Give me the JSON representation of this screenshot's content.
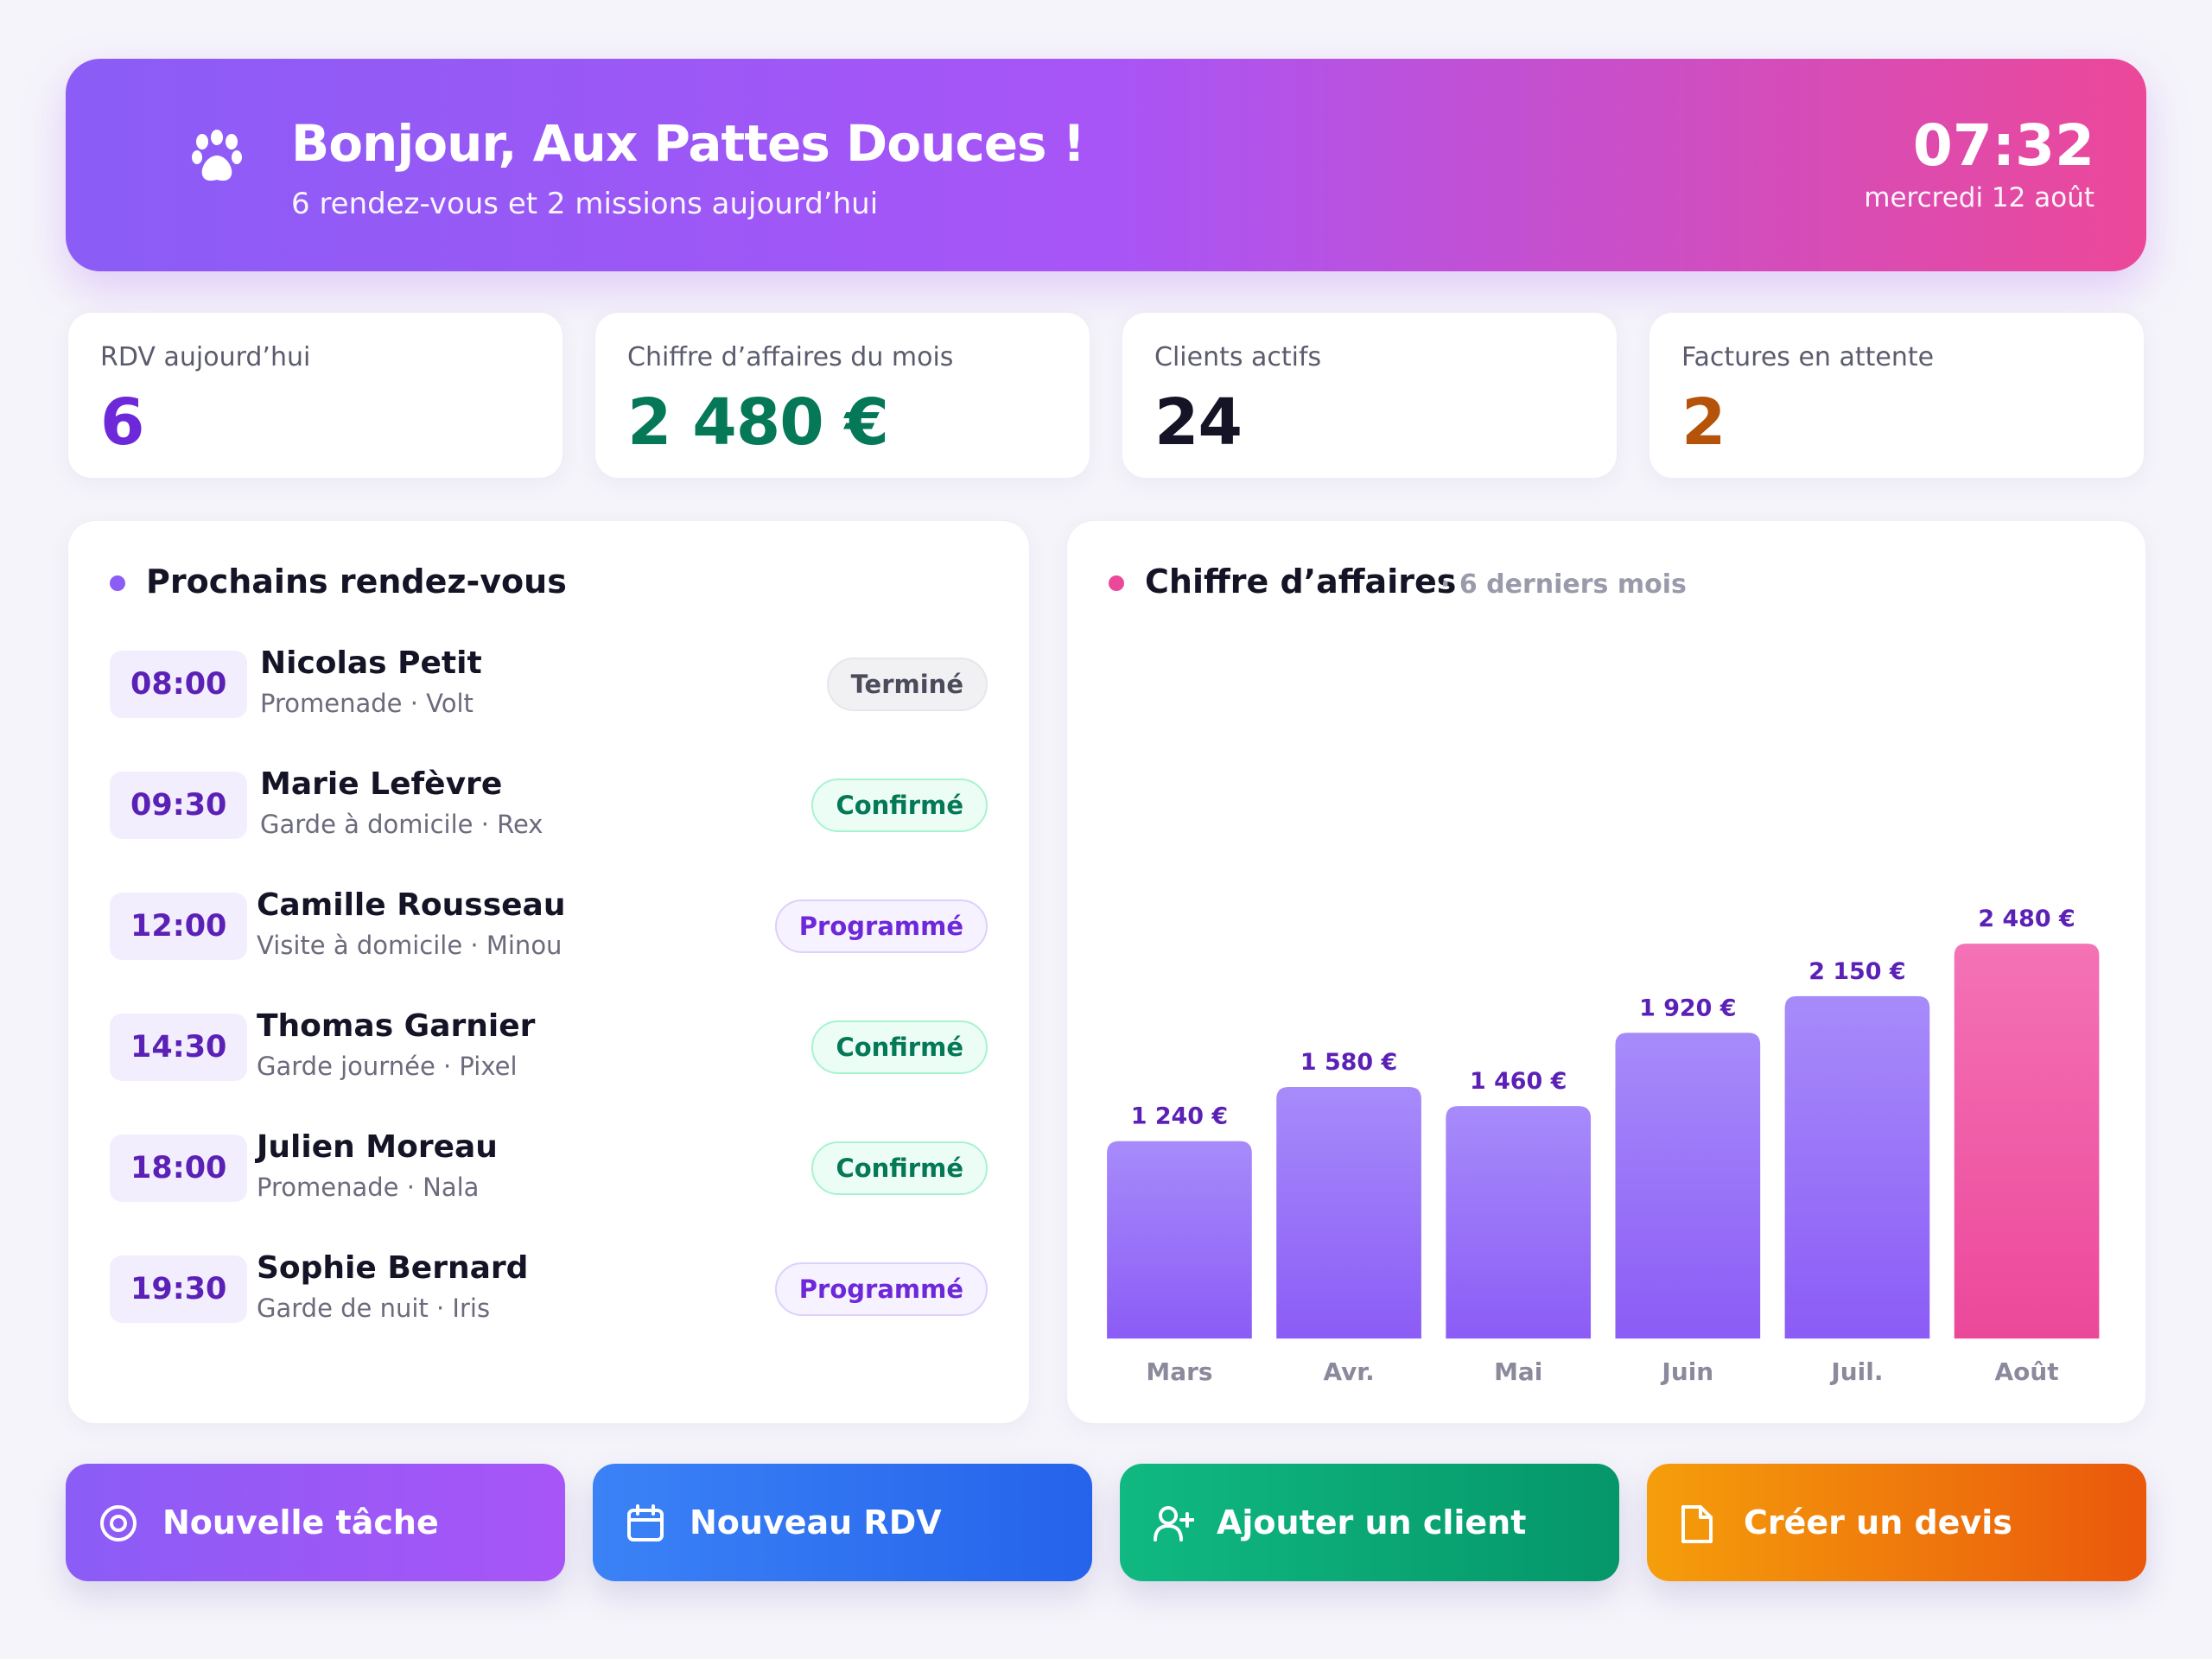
{
  "header": {
    "title": "Bonjour, Aux Pattes Douces !",
    "subtitle": "6 rendez-vous et 2 missions aujourd’hui",
    "time": "07:32",
    "date": "mercredi 12 août",
    "icon": "paw-icon"
  },
  "kpis": [
    {
      "label": "RDV aujourd’hui",
      "value": "6",
      "color": "#6d28d9"
    },
    {
      "label": "Chiffre d’affaires du mois",
      "value": "2 480 €",
      "color": "#047857"
    },
    {
      "label": "Clients actifs",
      "value": "24",
      "color": "#141426"
    },
    {
      "label": "Factures en attente",
      "value": "2",
      "color": "#b45309"
    }
  ],
  "appointments": {
    "title": "Prochains rendez-vous",
    "items": [
      {
        "time": "08:00",
        "name": "Nicolas Petit",
        "detail": "Promenade · Volt",
        "status": "Terminé",
        "status_type": "done"
      },
      {
        "time": "09:30",
        "name": "Marie Lefèvre",
        "detail": "Garde à domicile · Rex",
        "status": "Confirmé",
        "status_type": "confirmed"
      },
      {
        "time": "12:00",
        "name": "Camille Rousseau",
        "detail": "Visite à domicile · Minou",
        "status": "Programmé",
        "status_type": "scheduled"
      },
      {
        "time": "14:30",
        "name": "Thomas Garnier",
        "detail": "Garde journée · Pixel",
        "status": "Confirmé",
        "status_type": "confirmed"
      },
      {
        "time": "18:00",
        "name": "Julien Moreau",
        "detail": "Promenade · Nala",
        "status": "Confirmé",
        "status_type": "confirmed"
      },
      {
        "time": "19:30",
        "name": "Sophie Bernard",
        "detail": "Garde de nuit · Iris",
        "status": "Programmé",
        "status_type": "scheduled"
      }
    ]
  },
  "revenue": {
    "title": "Chiffre d’affaires",
    "subtitle": "· 6 derniers mois"
  },
  "chart_data": {
    "type": "bar",
    "title": "Chiffre d’affaires",
    "subtitle": "· 6 derniers mois",
    "categories": [
      "Mars",
      "Avr.",
      "Mai",
      "Juin",
      "Juil.",
      "Août"
    ],
    "values": [
      1240,
      1580,
      1460,
      1920,
      2150,
      2480
    ],
    "value_labels": [
      "1 240 €",
      "1 580 €",
      "1 460 €",
      "1 920 €",
      "2 150 €",
      "2 480 €"
    ],
    "ylim": [
      0,
      2480
    ],
    "grid": false,
    "highlight_last": true,
    "colors": {
      "bar": "#8b5cf6",
      "highlight": "#ec4899",
      "label": "#5b21b6",
      "axis_label": "#8a8a9c"
    }
  },
  "actions": [
    {
      "label": "Nouvelle tâche",
      "icon": "target-icon",
      "gradient": [
        "#8b5cf6",
        "#a855f7"
      ]
    },
    {
      "label": "Nouveau RDV",
      "icon": "calendar-icon",
      "gradient": [
        "#3b82f6",
        "#2563eb"
      ]
    },
    {
      "label": "Ajouter un client",
      "icon": "add-user-icon",
      "gradient": [
        "#10b981",
        "#059669"
      ]
    },
    {
      "label": "Créer un devis",
      "icon": "document-icon",
      "gradient": [
        "#f59e0b",
        "#ea580c"
      ]
    }
  ]
}
